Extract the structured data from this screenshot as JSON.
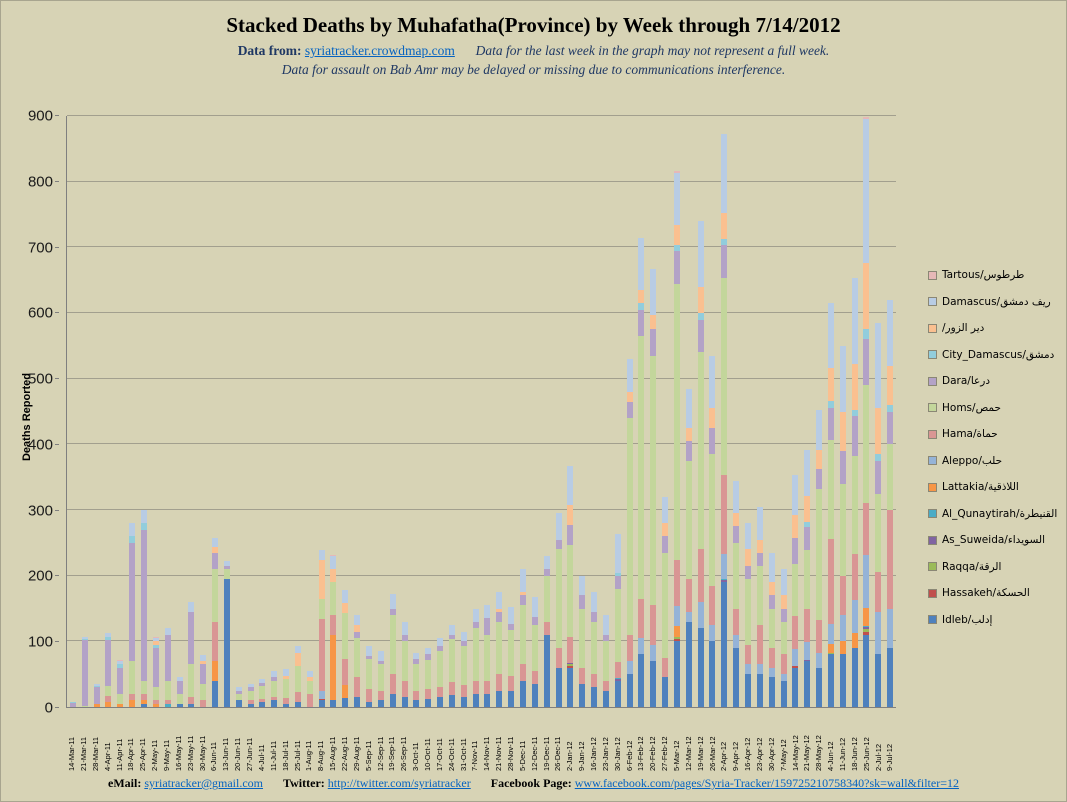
{
  "header": {
    "title": "Stacked Deaths by Muhafatha(Province) by Week through 7/14/2012",
    "data_from_label": "Data from:",
    "data_from_link": "syriatracker.crowdmap.com",
    "note1": "Data for the last week in the graph may not represent a full week.",
    "note2": "Data for assault on Bab Amr may be delayed or missing due to communications interference."
  },
  "footer": {
    "email_label": "eMail:",
    "email_link": "syriatracker@gmail.com",
    "twitter_label": "Twitter:",
    "twitter_link": "http://twitter.com/syriatracker",
    "facebook_label": "Facebook  Page:",
    "facebook_link": "www.facebook.com/pages/Syria-Tracker/159725210758340?sk=wall&filter=12"
  },
  "chart_data": {
    "type": "bar",
    "stacked": true,
    "title": "Stacked Deaths by Muhafatha(Province) by Week through 7/14/2012",
    "xlabel": "",
    "ylabel": "Deaths  Reported",
    "ylim": [
      0,
      900
    ],
    "ytick_step": 100,
    "grid": true,
    "legend_position": "right",
    "categories": [
      "14-Mar-11",
      "21-Mar-11",
      "28-Mar-11",
      "4-Apr-11",
      "11-Apr-11",
      "18-Apr-11",
      "25-Apr-11",
      "2-May-11",
      "9-May-11",
      "16-May-11",
      "23-May-11",
      "30-May-11",
      "6-Jun-11",
      "13-Jun-11",
      "20-Jun-11",
      "27-Jun-11",
      "4-Jul-11",
      "11-Jul-11",
      "18-Jul-11",
      "25-Jul-11",
      "1-Aug-11",
      "8-Aug-11",
      "15-Aug-11",
      "22-Aug-11",
      "29-Aug-11",
      "5-Sep-11",
      "12-Sep-11",
      "19-Sep-11",
      "26-Sep-11",
      "3-Oct-11",
      "10-Oct-11",
      "17-Oct-11",
      "24-Oct-11",
      "31-Oct-11",
      "7-Nov-11",
      "14-Nov-11",
      "21-Nov-11",
      "28-Nov-11",
      "5-Dec-11",
      "12-Dec-11",
      "19-Dec-11",
      "26-Dec-11",
      "2-Jan-12",
      "9-Jan-12",
      "16-Jan-12",
      "23-Jan-12",
      "30-Jan-12",
      "6-Feb-12",
      "13-Feb-12",
      "20-Feb-12",
      "27-Feb-12",
      "5-Mar-12",
      "12-Mar-12",
      "19-Mar-12",
      "26-Mar-12",
      "2-Apr-12",
      "9-Apr-12",
      "16-Apr-12",
      "23-Apr-12",
      "30-Apr-12",
      "7-May-12",
      "14-May-12",
      "21-May-12",
      "28-May-12",
      "4-Jun-12",
      "11-Jun-12",
      "18-Jun-12",
      "25-Jun-12",
      "2-Jul-12",
      "9-Jul-12"
    ],
    "series": [
      {
        "name": "Idleb",
        "label": "Idleb/إدلب",
        "color": "#4F81BD",
        "values": [
          0,
          0,
          0,
          0,
          0,
          0,
          5,
          0,
          0,
          5,
          5,
          0,
          40,
          195,
          10,
          5,
          7,
          10,
          5,
          8,
          0,
          10,
          10,
          13,
          15,
          8,
          10,
          20,
          15,
          10,
          12,
          15,
          18,
          15,
          20,
          20,
          25,
          25,
          40,
          35,
          110,
          60,
          60,
          35,
          30,
          25,
          40,
          50,
          80,
          70,
          45,
          100,
          130,
          120,
          100,
          190,
          90,
          50,
          50,
          45,
          40,
          60,
          70,
          60,
          80,
          80,
          90,
          110,
          80,
          90
        ]
      },
      {
        "name": "Hassakeh",
        "label": "Hassakeh/الحسكة",
        "color": "#C0504D",
        "values": [
          0,
          0,
          0,
          0,
          0,
          0,
          0,
          0,
          0,
          0,
          0,
          0,
          0,
          0,
          0,
          0,
          0,
          0,
          0,
          0,
          0,
          2,
          0,
          0,
          0,
          0,
          0,
          0,
          0,
          0,
          0,
          0,
          0,
          0,
          0,
          0,
          0,
          0,
          0,
          0,
          0,
          0,
          3,
          0,
          0,
          0,
          0,
          0,
          0,
          0,
          0,
          4,
          0,
          0,
          0,
          0,
          0,
          0,
          0,
          0,
          0,
          3,
          0,
          0,
          0,
          0,
          0,
          5,
          0,
          0
        ]
      },
      {
        "name": "Raqqa",
        "label": "Raqqa/الرقة",
        "color": "#9BBB59",
        "values": [
          0,
          0,
          0,
          0,
          0,
          0,
          0,
          0,
          0,
          0,
          0,
          0,
          0,
          0,
          0,
          0,
          0,
          0,
          0,
          0,
          0,
          0,
          0,
          0,
          0,
          0,
          0,
          0,
          0,
          0,
          0,
          0,
          0,
          0,
          0,
          0,
          0,
          0,
          0,
          0,
          0,
          0,
          2,
          0,
          0,
          0,
          0,
          0,
          0,
          0,
          0,
          3,
          0,
          0,
          0,
          0,
          0,
          0,
          0,
          0,
          0,
          0,
          0,
          0,
          2,
          0,
          0,
          4,
          0,
          0
        ]
      },
      {
        "name": "As_Suweida",
        "label": "As_Suweida/السويداء",
        "color": "#8064A2",
        "values": [
          0,
          0,
          0,
          0,
          0,
          0,
          0,
          0,
          0,
          0,
          0,
          0,
          0,
          0,
          0,
          0,
          0,
          0,
          0,
          0,
          0,
          0,
          0,
          0,
          0,
          0,
          0,
          0,
          0,
          0,
          0,
          0,
          0,
          0,
          0,
          0,
          0,
          0,
          0,
          0,
          0,
          0,
          2,
          0,
          0,
          0,
          2,
          0,
          0,
          0,
          0,
          0,
          0,
          0,
          0,
          3,
          0,
          0,
          0,
          0,
          0,
          0,
          2,
          0,
          0,
          0,
          0,
          3,
          0,
          0
        ]
      },
      {
        "name": "Al_Qunaytirah",
        "label": "Al_Qunaytirah/القنيطرة",
        "color": "#4BACC6",
        "values": [
          0,
          0,
          0,
          0,
          0,
          0,
          0,
          0,
          5,
          0,
          0,
          0,
          0,
          0,
          0,
          0,
          0,
          0,
          0,
          0,
          0,
          0,
          0,
          0,
          0,
          0,
          0,
          0,
          0,
          0,
          0,
          0,
          0,
          0,
          0,
          0,
          0,
          0,
          0,
          0,
          0,
          0,
          0,
          0,
          0,
          0,
          2,
          0,
          0,
          0,
          0,
          0,
          0,
          0,
          0,
          2,
          0,
          0,
          0,
          0,
          0,
          0,
          0,
          0,
          0,
          0,
          0,
          2,
          0,
          0
        ]
      },
      {
        "name": "Lattakia",
        "label": "Lattakia/اللاذقية",
        "color": "#F79646",
        "values": [
          0,
          0,
          5,
          7,
          5,
          10,
          5,
          5,
          0,
          0,
          0,
          0,
          30,
          0,
          0,
          0,
          0,
          0,
          0,
          0,
          0,
          0,
          100,
          20,
          0,
          0,
          0,
          0,
          0,
          0,
          0,
          0,
          0,
          0,
          0,
          0,
          0,
          0,
          0,
          0,
          0,
          0,
          0,
          0,
          0,
          0,
          0,
          0,
          0,
          0,
          0,
          17,
          0,
          0,
          0,
          0,
          0,
          0,
          0,
          0,
          0,
          0,
          0,
          0,
          14,
          20,
          23,
          27,
          0,
          0
        ]
      },
      {
        "name": "Aleppo",
        "label": "Aleppo/حلب",
        "color": "#95B3D7",
        "values": [
          0,
          0,
          0,
          0,
          0,
          0,
          0,
          0,
          0,
          0,
          0,
          0,
          0,
          0,
          0,
          0,
          0,
          0,
          0,
          0,
          0,
          12,
          0,
          0,
          0,
          0,
          0,
          0,
          0,
          0,
          0,
          0,
          0,
          0,
          0,
          0,
          0,
          0,
          0,
          0,
          0,
          0,
          0,
          0,
          0,
          0,
          0,
          20,
          25,
          25,
          0,
          30,
          15,
          40,
          25,
          38,
          20,
          15,
          15,
          15,
          10,
          25,
          27,
          22,
          30,
          40,
          50,
          80,
          65,
          60
        ]
      },
      {
        "name": "Hama",
        "label": "Hama/حماة",
        "color": "#D99694",
        "values": [
          0,
          0,
          0,
          10,
          0,
          10,
          10,
          5,
          5,
          0,
          10,
          10,
          60,
          0,
          0,
          5,
          5,
          5,
          8,
          15,
          20,
          110,
          30,
          40,
          30,
          20,
          15,
          30,
          25,
          15,
          15,
          15,
          20,
          18,
          20,
          20,
          25,
          22,
          25,
          20,
          20,
          30,
          40,
          25,
          20,
          15,
          25,
          40,
          60,
          60,
          30,
          70,
          50,
          80,
          60,
          120,
          40,
          30,
          60,
          30,
          30,
          50,
          50,
          50,
          130,
          60,
          70,
          80,
          60,
          150
        ]
      },
      {
        "name": "Homs",
        "label": "Homs/حمص",
        "color": "#C3D69B",
        "values": [
          0,
          2,
          0,
          15,
          15,
          50,
          20,
          20,
          30,
          15,
          50,
          25,
          80,
          15,
          10,
          15,
          20,
          25,
          30,
          40,
          20,
          30,
          50,
          70,
          60,
          45,
          40,
          90,
          60,
          40,
          45,
          55,
          65,
          60,
          80,
          70,
          80,
          70,
          90,
          70,
          70,
          150,
          140,
          90,
          80,
          60,
          110,
          330,
          400,
          380,
          160,
          420,
          180,
          300,
          200,
          300,
          100,
          100,
          90,
          60,
          50,
          80,
          90,
          200,
          150,
          140,
          150,
          180,
          120,
          100
        ]
      },
      {
        "name": "Dara",
        "label": "Dara/درعا",
        "color": "#B3A2C7",
        "values": [
          6,
          100,
          25,
          70,
          40,
          180,
          230,
          60,
          70,
          20,
          80,
          30,
          25,
          5,
          5,
          5,
          5,
          5,
          0,
          0,
          0,
          0,
          0,
          0,
          10,
          5,
          5,
          10,
          10,
          8,
          8,
          8,
          7,
          7,
          10,
          25,
          15,
          10,
          15,
          12,
          10,
          15,
          30,
          20,
          15,
          10,
          20,
          25,
          40,
          40,
          25,
          50,
          30,
          50,
          40,
          50,
          25,
          20,
          20,
          20,
          20,
          40,
          35,
          30,
          50,
          50,
          60,
          70,
          50,
          50
        ]
      },
      {
        "name": "City_Damascus",
        "label": "City_Damascus/دمشق",
        "color": "#92CDDC",
        "values": [
          1,
          2,
          2,
          5,
          5,
          10,
          10,
          5,
          0,
          0,
          0,
          0,
          0,
          0,
          0,
          0,
          0,
          0,
          0,
          0,
          0,
          0,
          0,
          0,
          0,
          0,
          0,
          0,
          0,
          0,
          0,
          0,
          0,
          0,
          0,
          0,
          0,
          0,
          0,
          0,
          0,
          0,
          0,
          0,
          0,
          0,
          5,
          0,
          10,
          0,
          0,
          10,
          0,
          10,
          0,
          10,
          0,
          0,
          0,
          0,
          0,
          0,
          8,
          0,
          10,
          0,
          10,
          15,
          10,
          10
        ]
      },
      {
        "name": "Deir_Ezzor",
        "label": "/دير الزور",
        "color": "#FAC090",
        "values": [
          0,
          0,
          0,
          0,
          0,
          0,
          0,
          5,
          0,
          0,
          0,
          5,
          8,
          0,
          0,
          0,
          0,
          0,
          5,
          20,
          5,
          60,
          20,
          15,
          10,
          0,
          0,
          0,
          0,
          0,
          0,
          0,
          0,
          0,
          0,
          0,
          5,
          0,
          5,
          0,
          0,
          0,
          30,
          0,
          0,
          0,
          0,
          15,
          20,
          22,
          20,
          30,
          20,
          40,
          30,
          40,
          20,
          25,
          20,
          20,
          20,
          35,
          40,
          30,
          50,
          60,
          70,
          100,
          70,
          60
        ]
      },
      {
        "name": "Damascus",
        "label": "Damascus/ريف دمشق",
        "color": "#B8CCE4",
        "values": [
          1,
          3,
          3,
          5,
          5,
          20,
          20,
          5,
          10,
          5,
          15,
          10,
          15,
          7,
          5,
          5,
          5,
          10,
          10,
          10,
          10,
          15,
          20,
          20,
          15,
          15,
          15,
          22,
          20,
          10,
          10,
          12,
          15,
          15,
          20,
          20,
          25,
          25,
          35,
          30,
          20,
          40,
          60,
          30,
          30,
          30,
          60,
          50,
          80,
          70,
          40,
          80,
          60,
          100,
          80,
          120,
          50,
          40,
          50,
          45,
          40,
          60,
          70,
          60,
          100,
          100,
          130,
          220,
          130,
          100
        ]
      },
      {
        "name": "Tartous",
        "label": "Tartous/طرطوس",
        "color": "#E6B8B7",
        "values": [
          0,
          0,
          0,
          0,
          2,
          0,
          0,
          2,
          0,
          0,
          0,
          0,
          0,
          0,
          0,
          0,
          0,
          0,
          0,
          0,
          0,
          0,
          2,
          0,
          0,
          0,
          0,
          0,
          0,
          0,
          0,
          0,
          0,
          0,
          0,
          0,
          0,
          0,
          0,
          0,
          0,
          0,
          0,
          0,
          0,
          0,
          0,
          0,
          0,
          0,
          0,
          2,
          0,
          0,
          0,
          0,
          0,
          0,
          0,
          0,
          0,
          0,
          0,
          0,
          0,
          0,
          0,
          2,
          0,
          0
        ]
      }
    ]
  }
}
